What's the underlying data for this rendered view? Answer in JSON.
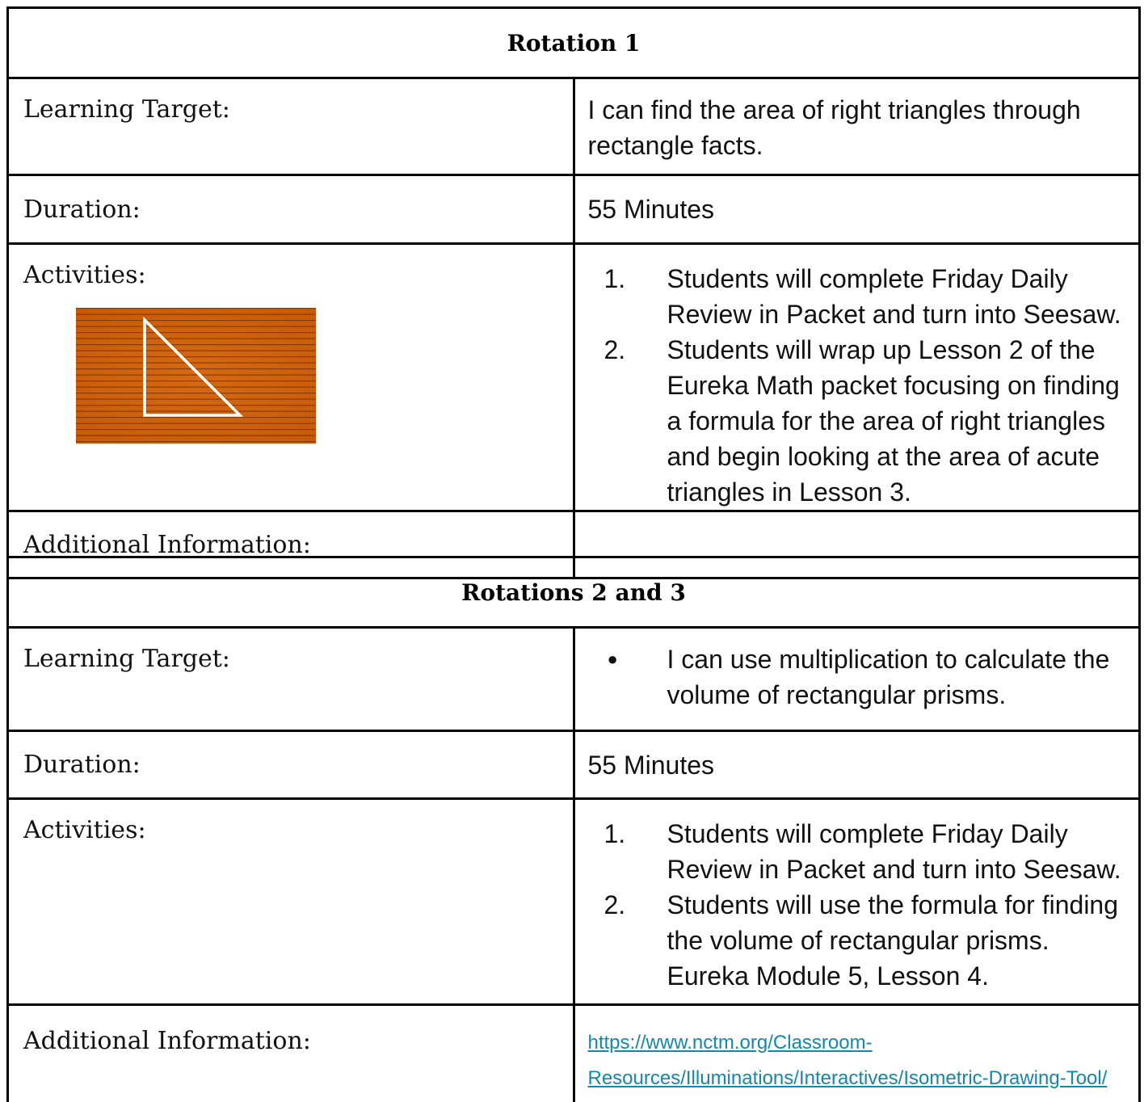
{
  "tables": [
    {
      "title": "Rotation 1",
      "rows": [
        {
          "label": "Learning Target:",
          "text": "I can find the area of right triangles through rectangle facts."
        },
        {
          "label": "Duration:",
          "text": "55 Minutes"
        },
        {
          "label": "Activities:",
          "items": [
            "Students will complete Friday Daily Review in Packet and turn into Seesaw.",
            "Students will wrap up Lesson 2 of the Eureka Math packet focusing on finding a formula for the area of right triangles and begin looking at the area of acute triangles in Lesson 3."
          ]
        },
        {
          "label": "Additional Information:"
        }
      ]
    },
    {
      "title": "Rotations 2 and 3",
      "rows": [
        {
          "label": "Learning Target:",
          "bullets": [
            "I can use multiplication to calculate the volume of rectangular prisms."
          ]
        },
        {
          "label": "Duration:",
          "text": "55 Minutes"
        },
        {
          "label": "Activities:",
          "items": [
            "Students will complete Friday Daily Review in Packet and turn into Seesaw.",
            "Students will use the formula for finding the volume of rectangular prisms. Eureka Module 5, Lesson 4."
          ]
        },
        {
          "label": "Additional Information:",
          "link": "https://www.nctm.org/Classroom-Resources/Illuminations/Interactives/Isometric-Drawing-Tool/"
        }
      ]
    }
  ]
}
